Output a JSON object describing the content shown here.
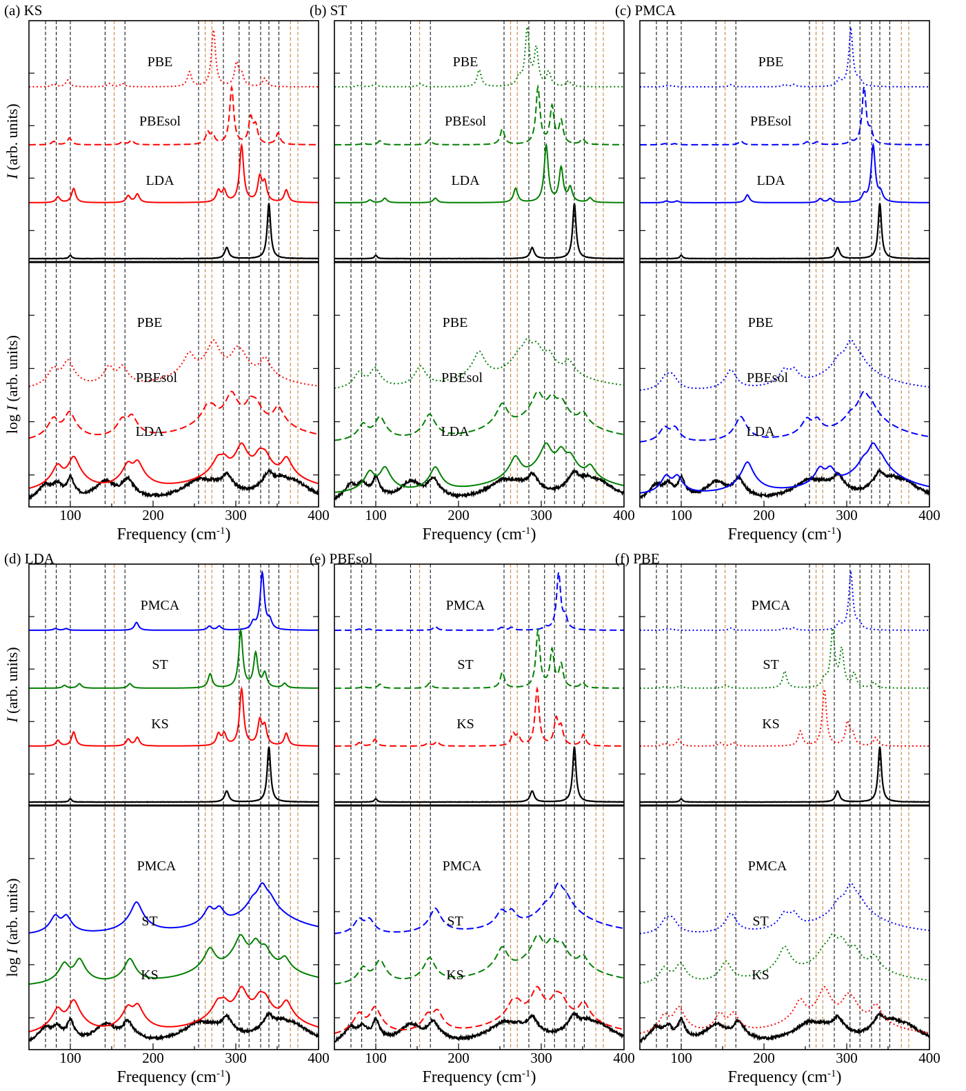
{
  "figure": {
    "x_axis_label": "Frequency (cm",
    "x_axis_label_sup": "-1",
    "x_axis_label_end": ")",
    "y_top_label_italic": "I",
    "y_top_label_rest": " (arb. units)",
    "y_bottom_label_pre": "log ",
    "y_bottom_label_italic": "I",
    "y_bottom_label_rest": " (arb. units)"
  },
  "colors": {
    "KS": "#ff0000",
    "ST": "#008000",
    "PMCA": "#0000ff",
    "experiment": "#000000",
    "guide_black": "#000000",
    "guide_orange": "#c87830"
  },
  "chart_data": {
    "type": "line",
    "xlim": [
      50,
      400
    ],
    "xticks": [
      100,
      200,
      300,
      400
    ],
    "grid": false,
    "reference_lines_black": [
      70,
      83,
      100,
      142,
      166,
      255,
      285,
      304,
      316,
      330,
      340,
      352
    ],
    "reference_lines_orange": [
      153,
      263,
      271,
      366,
      375
    ],
    "experimental_peaks": [
      {
        "x": 100,
        "w": 2,
        "a": 0.06
      },
      {
        "x": 289,
        "w": 3,
        "a": 0.2
      },
      {
        "x": 340,
        "w": 2.5,
        "a": 1.0
      }
    ],
    "log_experimental_peaks": [
      {
        "x": 70,
        "w": 6,
        "a": 0.2
      },
      {
        "x": 84,
        "w": 5,
        "a": 0.25
      },
      {
        "x": 100,
        "w": 3,
        "a": 0.55
      },
      {
        "x": 143,
        "w": 10,
        "a": 0.3
      },
      {
        "x": 169,
        "w": 5,
        "a": 0.45
      },
      {
        "x": 255,
        "w": 12,
        "a": 0.35
      },
      {
        "x": 272,
        "w": 10,
        "a": 0.2
      },
      {
        "x": 289,
        "w": 5,
        "a": 0.75
      },
      {
        "x": 340,
        "w": 5,
        "a": 1.0
      },
      {
        "x": 355,
        "w": 8,
        "a": 0.45
      },
      {
        "x": 370,
        "w": 12,
        "a": 0.25
      }
    ],
    "spectra": {
      "KS_LDA": [
        {
          "x": 85,
          "a": 0.1
        },
        {
          "x": 104,
          "a": 0.25
        },
        {
          "x": 170,
          "a": 0.12
        },
        {
          "x": 181,
          "a": 0.15
        },
        {
          "x": 279,
          "a": 0.2
        },
        {
          "x": 286,
          "a": 0.2
        },
        {
          "x": 307,
          "a": 1.0
        },
        {
          "x": 329,
          "a": 0.42
        },
        {
          "x": 335,
          "a": 0.32
        },
        {
          "x": 361,
          "a": 0.22
        }
      ],
      "KS_PBEsol": [
        {
          "x": 80,
          "a": 0.06
        },
        {
          "x": 99,
          "a": 0.12
        },
        {
          "x": 163,
          "a": 0.05
        },
        {
          "x": 174,
          "a": 0.08
        },
        {
          "x": 266,
          "a": 0.2
        },
        {
          "x": 272,
          "a": 0.16
        },
        {
          "x": 295,
          "a": 1.0
        },
        {
          "x": 318,
          "a": 0.45
        },
        {
          "x": 324,
          "a": 0.3
        },
        {
          "x": 351,
          "a": 0.2
        }
      ],
      "KS_PBE": [
        {
          "x": 80,
          "a": 0.05
        },
        {
          "x": 97,
          "a": 0.12
        },
        {
          "x": 147,
          "a": 0.06
        },
        {
          "x": 163,
          "a": 0.06
        },
        {
          "x": 244,
          "a": 0.26
        },
        {
          "x": 273,
          "a": 1.0
        },
        {
          "x": 301,
          "a": 0.4
        },
        {
          "x": 307,
          "a": 0.2
        },
        {
          "x": 335,
          "a": 0.15
        }
      ],
      "ST_LDA": [
        {
          "x": 93,
          "a": 0.05
        },
        {
          "x": 111,
          "a": 0.08
        },
        {
          "x": 172,
          "a": 0.08
        },
        {
          "x": 269,
          "a": 0.25
        },
        {
          "x": 306,
          "a": 1.0
        },
        {
          "x": 324,
          "a": 0.6
        },
        {
          "x": 335,
          "a": 0.25
        },
        {
          "x": 359,
          "a": 0.08
        }
      ],
      "ST_PBEsol": [
        {
          "x": 85,
          "a": 0.03
        },
        {
          "x": 105,
          "a": 0.07
        },
        {
          "x": 165,
          "a": 0.09
        },
        {
          "x": 253,
          "a": 0.28
        },
        {
          "x": 296,
          "a": 1.0
        },
        {
          "x": 313,
          "a": 0.65
        },
        {
          "x": 324,
          "a": 0.4
        },
        {
          "x": 350,
          "a": 0.1
        }
      ],
      "ST_PBE": [
        {
          "x": 80,
          "a": 0.03
        },
        {
          "x": 99,
          "a": 0.05
        },
        {
          "x": 154,
          "a": 0.06
        },
        {
          "x": 225,
          "a": 0.3
        },
        {
          "x": 273,
          "a": 0.15
        },
        {
          "x": 283,
          "a": 1.0
        },
        {
          "x": 294,
          "a": 0.65
        },
        {
          "x": 309,
          "a": 0.25
        },
        {
          "x": 333,
          "a": 0.1
        }
      ],
      "PMCA_LDA": [
        {
          "x": 82,
          "a": 0.03
        },
        {
          "x": 95,
          "a": 0.03
        },
        {
          "x": 180,
          "a": 0.14
        },
        {
          "x": 268,
          "a": 0.07
        },
        {
          "x": 280,
          "a": 0.07
        },
        {
          "x": 321,
          "a": 0.12
        },
        {
          "x": 332,
          "a": 1.0
        },
        {
          "x": 341,
          "a": 0.15
        }
      ],
      "PMCA_PBEsol": [
        {
          "x": 80,
          "a": 0.02
        },
        {
          "x": 92,
          "a": 0.02
        },
        {
          "x": 172,
          "a": 0.07
        },
        {
          "x": 252,
          "a": 0.05
        },
        {
          "x": 264,
          "a": 0.05
        },
        {
          "x": 305,
          "a": 0.05
        },
        {
          "x": 321,
          "a": 1.0
        },
        {
          "x": 329,
          "a": 0.2
        }
      ],
      "PMCA_PBE": [
        {
          "x": 82,
          "a": 0.02
        },
        {
          "x": 89,
          "a": 0.02
        },
        {
          "x": 160,
          "a": 0.04
        },
        {
          "x": 225,
          "a": 0.04
        },
        {
          "x": 236,
          "a": 0.04
        },
        {
          "x": 291,
          "a": 0.12
        },
        {
          "x": 305,
          "a": 1.0
        },
        {
          "x": 315,
          "a": 0.12
        }
      ]
    },
    "panels": [
      {
        "letter": "(a)",
        "name": "KS",
        "top": [
          "KS_PBE",
          "KS_PBEsol",
          "KS_LDA"
        ],
        "labels": [
          "PBE",
          "PBEsol",
          "LDA"
        ],
        "colors": [
          "KS",
          "KS",
          "KS"
        ],
        "styles": [
          "dotted",
          "dashed",
          "solid"
        ]
      },
      {
        "letter": "(b)",
        "name": "ST",
        "top": [
          "ST_PBE",
          "ST_PBEsol",
          "ST_LDA"
        ],
        "labels": [
          "PBE",
          "PBEsol",
          "LDA"
        ],
        "colors": [
          "ST",
          "ST",
          "ST"
        ],
        "styles": [
          "dotted",
          "dashed",
          "solid"
        ]
      },
      {
        "letter": "(c)",
        "name": "PMCA",
        "top": [
          "PMCA_PBE",
          "PMCA_PBEsol",
          "PMCA_LDA"
        ],
        "labels": [
          "PBE",
          "PBEsol",
          "LDA"
        ],
        "colors": [
          "PMCA",
          "PMCA",
          "PMCA"
        ],
        "styles": [
          "dotted",
          "dashed",
          "solid"
        ]
      },
      {
        "letter": "(d)",
        "name": "LDA",
        "top": [
          "PMCA_LDA",
          "ST_LDA",
          "KS_LDA"
        ],
        "labels": [
          "PMCA",
          "ST",
          "KS"
        ],
        "colors": [
          "PMCA",
          "ST",
          "KS"
        ],
        "styles": [
          "solid",
          "solid",
          "solid"
        ]
      },
      {
        "letter": "(e)",
        "name": "PBEsol",
        "top": [
          "PMCA_PBEsol",
          "ST_PBEsol",
          "KS_PBEsol"
        ],
        "labels": [
          "PMCA",
          "ST",
          "KS"
        ],
        "colors": [
          "PMCA",
          "ST",
          "KS"
        ],
        "styles": [
          "dashed",
          "dashed",
          "dashed"
        ]
      },
      {
        "letter": "(f)",
        "name": "PBE",
        "top": [
          "PMCA_PBE",
          "ST_PBE",
          "KS_PBE"
        ],
        "labels": [
          "PMCA",
          "ST",
          "KS"
        ],
        "colors": [
          "PMCA",
          "ST",
          "KS"
        ],
        "styles": [
          "dotted",
          "dotted",
          "dotted"
        ]
      }
    ]
  }
}
